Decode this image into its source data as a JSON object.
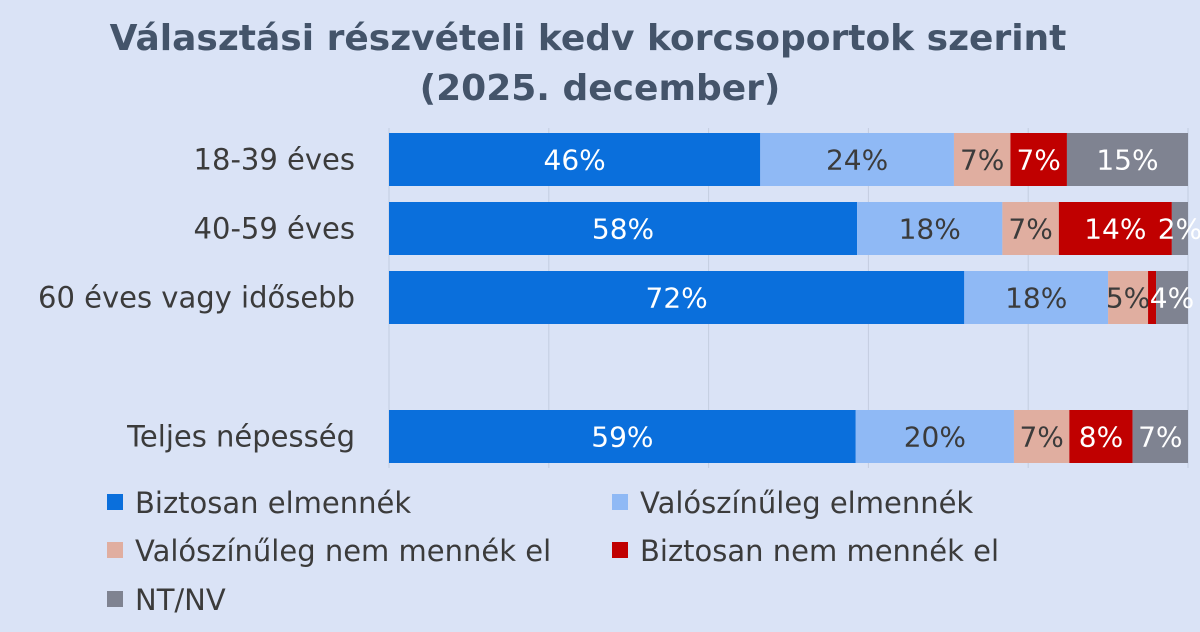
{
  "chart_data": {
    "type": "bar",
    "orientation": "horizontal",
    "stacked": "percent",
    "title": "Választási részvételi kedv korcsoportok szerint",
    "subtitle": "(2025. december)",
    "categories": [
      "18-39 éves",
      "40-59 éves",
      "60 éves vagy idősebb",
      "",
      "Teljes népesség"
    ],
    "series": [
      {
        "name": "Biztosan elmennék",
        "color": "#0a6fdc",
        "label_color": "#ffffff",
        "values": [
          46,
          58,
          72,
          null,
          59
        ],
        "labels": [
          "46%",
          "58%",
          "72%",
          "",
          "59%"
        ]
      },
      {
        "name": "Valószínűleg elmennék",
        "color": "#8fb9f5",
        "label_color": "#3b3b3b",
        "values": [
          24,
          18,
          18,
          null,
          20
        ],
        "labels": [
          "24%",
          "18%",
          "18%",
          "",
          "20%"
        ]
      },
      {
        "name": "Valószínűleg nem mennék el",
        "color": "#e0aea0",
        "label_color": "#3b3b3b",
        "values": [
          7,
          7,
          5,
          null,
          7
        ],
        "labels": [
          "7%",
          "7%",
          "5%",
          "",
          "7%"
        ]
      },
      {
        "name": "Biztosan nem mennék el",
        "color": "#c00000",
        "label_color": "#ffffff",
        "values": [
          7,
          14,
          1,
          null,
          8
        ],
        "labels": [
          "7%",
          "14%",
          "",
          "",
          "8%"
        ]
      },
      {
        "name": "NT/NV",
        "color": "#7f8391",
        "label_color": "#ffffff",
        "values": [
          15,
          2,
          4,
          null,
          7
        ],
        "labels": [
          "15%",
          "2%",
          "4%",
          "",
          "7%"
        ]
      }
    ],
    "xlim": [
      0,
      100
    ],
    "grid": true,
    "legend_position": "bottom"
  }
}
